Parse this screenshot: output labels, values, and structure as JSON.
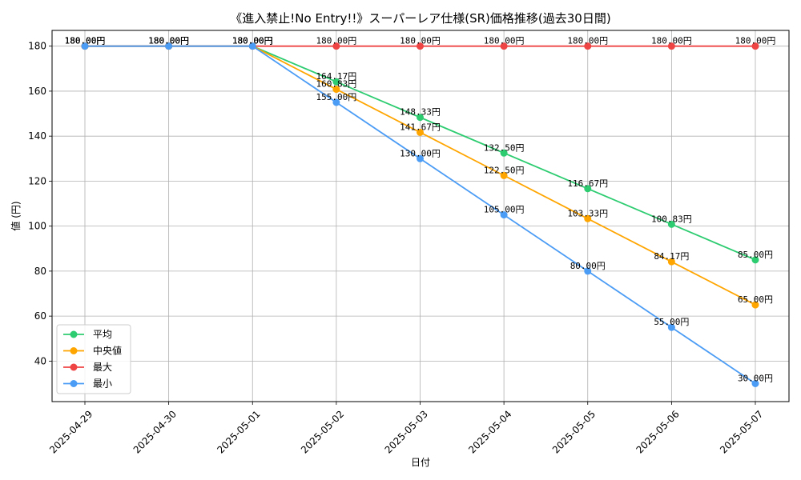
{
  "chart_data": {
    "type": "line",
    "title": "《進入禁止!No Entry!!》スーパーレア仕様(SR)価格推移(過去30日間)",
    "xlabel": "日付",
    "ylabel": "値 (円)",
    "categories": [
      "2025-04-29",
      "2025-04-30",
      "2025-05-01",
      "2025-05-02",
      "2025-05-03",
      "2025-05-04",
      "2025-05-05",
      "2025-05-06",
      "2025-05-07"
    ],
    "ylim": [
      22,
      187
    ],
    "yticks": [
      40,
      60,
      80,
      100,
      120,
      140,
      160,
      180
    ],
    "grid": true,
    "legend_position": "lower-left",
    "label_suffix": "円",
    "series": [
      {
        "name": "平均",
        "color": "#2ecc71",
        "values": [
          180.0,
          180.0,
          180.0,
          164.17,
          148.33,
          132.5,
          116.67,
          100.83,
          85.0
        ],
        "labels": [
          "180.00円",
          "180.00円",
          "180.00円",
          "164.17円",
          "148.33円",
          "132.50円",
          "116.67円",
          "100.83円",
          "85.00円"
        ]
      },
      {
        "name": "中央値",
        "color": "#ffa500",
        "values": [
          180.0,
          180.0,
          180.0,
          160.83,
          141.67,
          122.5,
          103.33,
          84.17,
          65.0
        ],
        "labels": [
          "180.00円",
          "180.00円",
          "180.00円",
          "160.83円",
          "141.67円",
          "122.50円",
          "103.33円",
          "84.17円",
          "65.00円"
        ]
      },
      {
        "name": "最大",
        "color": "#ef4444",
        "values": [
          180.0,
          180.0,
          180.0,
          180.0,
          180.0,
          180.0,
          180.0,
          180.0,
          180.0
        ],
        "labels": [
          "180.00円",
          "180.00円",
          "180.00円",
          "180.00円",
          "180.00円",
          "180.00円",
          "180.00円",
          "180.00円",
          "180.00円"
        ]
      },
      {
        "name": "最小",
        "color": "#4b9cf5",
        "values": [
          180.0,
          180.0,
          180.0,
          155.0,
          130.0,
          105.0,
          80.0,
          55.0,
          30.0
        ],
        "labels": [
          "180.00円",
          "180.00円",
          "180.00円",
          "155.00円",
          "130.00円",
          "105.00円",
          "80.00円",
          "55.00円",
          "30.00円"
        ]
      }
    ]
  }
}
